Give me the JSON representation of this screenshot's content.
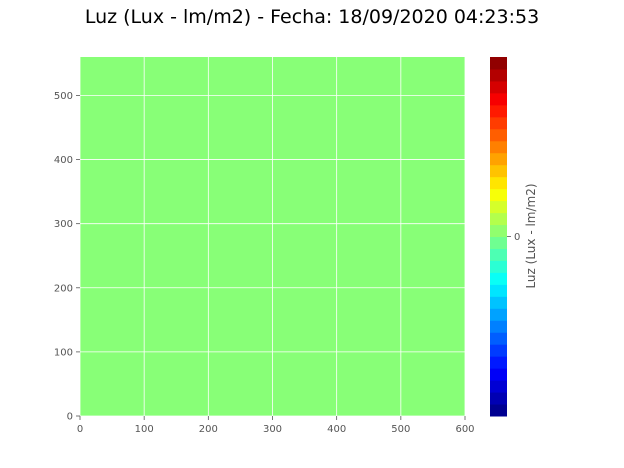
{
  "chart_data": {
    "type": "heatmap",
    "title": "Luz (Lux - lm/m2) - Fecha: 18/09/2020 04:23:53",
    "xlabel": "",
    "ylabel": "",
    "xlim": [
      0,
      600
    ],
    "ylim": [
      0,
      560
    ],
    "x_ticks": [
      "0",
      "100",
      "200",
      "300",
      "400",
      "500",
      "600"
    ],
    "y_ticks": [
      "0",
      "100",
      "200",
      "300",
      "400",
      "500"
    ],
    "grid": true,
    "field_value": 0,
    "field_color": "#88ff77",
    "colorbar": {
      "label": "Luz (Lux - lm/m2)",
      "colormap": "jet",
      "ticks": [
        "0"
      ],
      "levels": 30,
      "position": "right"
    }
  }
}
